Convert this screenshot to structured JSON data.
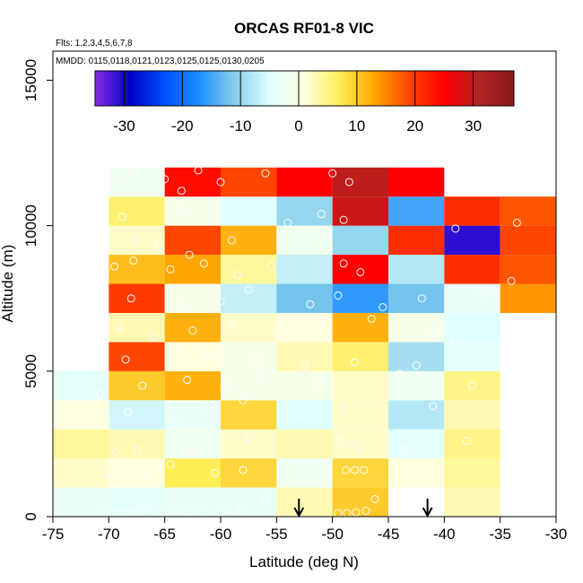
{
  "chart_data": {
    "type": "heatmap",
    "title": "ORCAS RF01-8 VIC",
    "flights_label": "Flts: 1,2,3,4,5,6,7,8",
    "mmdd_label": "MMDD: 0115,0118,0121,0123,0125,0125,0130,0205",
    "xlabel": "Latitude (deg N)",
    "ylabel": "Altitude (m)",
    "xlim": [
      -75,
      -30
    ],
    "ylim": [
      0,
      16000
    ],
    "x_ticks": [
      -75,
      -70,
      -65,
      -60,
      -55,
      -50,
      -45,
      -40,
      -35,
      -30
    ],
    "y_ticks": [
      0,
      5000,
      10000,
      15000
    ],
    "x_tick_labels": [
      "-75",
      "-70",
      "-65",
      "-60",
      "-55",
      "-50",
      "-45",
      "-40",
      "-35",
      "-30"
    ],
    "y_tick_labels": [
      "0",
      "5000",
      "10000",
      "15000"
    ],
    "colorbar": {
      "range": [
        -35,
        37
      ],
      "ticks": [
        -30,
        -20,
        -10,
        0,
        10,
        20,
        30
      ],
      "tick_labels": [
        "-30",
        "-20",
        "-10",
        "0",
        "10",
        "20",
        "30"
      ],
      "colors": [
        "#8a2be2",
        "#0000c8",
        "#0050ff",
        "#1e90ff",
        "#87ceeb",
        "#e0ffff",
        "#ffffe0",
        "#ffee58",
        "#ffa500",
        "#ff4500",
        "#ff0000",
        "#b22222",
        "#8b1a1a"
      ]
    },
    "lat_bins": [
      -75,
      -70,
      -65,
      -60,
      -55,
      -50,
      -45,
      -40,
      -35,
      -30
    ],
    "alt_bin_size": 1000,
    "cells": [
      {
        "lat": -75,
        "alt": 0,
        "value": -3
      },
      {
        "lat": -75,
        "alt": 1000,
        "value": 2
      },
      {
        "lat": -75,
        "alt": 2000,
        "value": 4
      },
      {
        "lat": -75,
        "alt": 3000,
        "value": 1
      },
      {
        "lat": -75,
        "alt": 4000,
        "value": -4
      },
      {
        "lat": -70,
        "alt": 0,
        "value": -4
      },
      {
        "lat": -70,
        "alt": 1000,
        "value": 1
      },
      {
        "lat": -70,
        "alt": 2000,
        "value": 3
      },
      {
        "lat": -70,
        "alt": 3000,
        "value": -6
      },
      {
        "lat": -70,
        "alt": 4000,
        "value": 10
      },
      {
        "lat": -70,
        "alt": 5000,
        "value": 19
      },
      {
        "lat": -70,
        "alt": 6000,
        "value": 3
      },
      {
        "lat": -70,
        "alt": 7000,
        "value": 20
      },
      {
        "lat": -70,
        "alt": 8000,
        "value": 11
      },
      {
        "lat": -70,
        "alt": 9000,
        "value": 2
      },
      {
        "lat": -70,
        "alt": 10000,
        "value": 6
      },
      {
        "lat": -70,
        "alt": 11000,
        "value": -2
      },
      {
        "lat": -65,
        "alt": 0,
        "value": -3
      },
      {
        "lat": -65,
        "alt": 1000,
        "value": 7
      },
      {
        "lat": -65,
        "alt": 2000,
        "value": -2
      },
      {
        "lat": -65,
        "alt": 3000,
        "value": -3
      },
      {
        "lat": -65,
        "alt": 4000,
        "value": 12
      },
      {
        "lat": -65,
        "alt": 5000,
        "value": 1
      },
      {
        "lat": -65,
        "alt": 6000,
        "value": 12
      },
      {
        "lat": -65,
        "alt": 7000,
        "value": -1
      },
      {
        "lat": -65,
        "alt": 8000,
        "value": 13
      },
      {
        "lat": -65,
        "alt": 9000,
        "value": 19
      },
      {
        "lat": -65,
        "alt": 10000,
        "value": -1
      },
      {
        "lat": -65,
        "alt": 11000,
        "value": 24
      },
      {
        "lat": -60,
        "alt": 0,
        "value": -3
      },
      {
        "lat": -60,
        "alt": 1000,
        "value": 9
      },
      {
        "lat": -60,
        "alt": 2000,
        "value": 2
      },
      {
        "lat": -60,
        "alt": 3000,
        "value": 9
      },
      {
        "lat": -60,
        "alt": 4000,
        "value": -1
      },
      {
        "lat": -60,
        "alt": 5000,
        "value": -1
      },
      {
        "lat": -60,
        "alt": 6000,
        "value": 2
      },
      {
        "lat": -60,
        "alt": 7000,
        "value": -7
      },
      {
        "lat": -60,
        "alt": 8000,
        "value": 4
      },
      {
        "lat": -60,
        "alt": 9000,
        "value": 12
      },
      {
        "lat": -60,
        "alt": 10000,
        "value": -5
      },
      {
        "lat": -60,
        "alt": 11000,
        "value": 19
      },
      {
        "lat": -55,
        "alt": 0,
        "value": 3
      },
      {
        "lat": -55,
        "alt": 1000,
        "value": -2
      },
      {
        "lat": -55,
        "alt": 2000,
        "value": 3
      },
      {
        "lat": -55,
        "alt": 3000,
        "value": -5
      },
      {
        "lat": -55,
        "alt": 4000,
        "value": -1
      },
      {
        "lat": -55,
        "alt": 5000,
        "value": 3
      },
      {
        "lat": -55,
        "alt": 6000,
        "value": 1
      },
      {
        "lat": -55,
        "alt": 7000,
        "value": -12
      },
      {
        "lat": -55,
        "alt": 8000,
        "value": -7
      },
      {
        "lat": -55,
        "alt": 9000,
        "value": -2
      },
      {
        "lat": -55,
        "alt": 10000,
        "value": -10
      },
      {
        "lat": -55,
        "alt": 11000,
        "value": 25
      },
      {
        "lat": -50,
        "alt": 0,
        "value": 10
      },
      {
        "lat": -50,
        "alt": 1000,
        "value": 9
      },
      {
        "lat": -50,
        "alt": 2000,
        "value": 2
      },
      {
        "lat": -50,
        "alt": 3000,
        "value": 2
      },
      {
        "lat": -50,
        "alt": 4000,
        "value": 2
      },
      {
        "lat": -50,
        "alt": 5000,
        "value": 6
      },
      {
        "lat": -50,
        "alt": 6000,
        "value": 12
      },
      {
        "lat": -50,
        "alt": 7000,
        "value": -16
      },
      {
        "lat": -50,
        "alt": 8000,
        "value": 25
      },
      {
        "lat": -50,
        "alt": 9000,
        "value": -10
      },
      {
        "lat": -50,
        "alt": 10000,
        "value": 29
      },
      {
        "lat": -50,
        "alt": 11000,
        "value": 30
      },
      {
        "lat": -45,
        "alt": 1000,
        "value": 1
      },
      {
        "lat": -45,
        "alt": 2000,
        "value": -4
      },
      {
        "lat": -45,
        "alt": 3000,
        "value": -8
      },
      {
        "lat": -45,
        "alt": 4000,
        "value": -2
      },
      {
        "lat": -45,
        "alt": 5000,
        "value": -9
      },
      {
        "lat": -45,
        "alt": 6000,
        "value": -1
      },
      {
        "lat": -45,
        "alt": 7000,
        "value": -12
      },
      {
        "lat": -45,
        "alt": 8000,
        "value": -8
      },
      {
        "lat": -45,
        "alt": 9000,
        "value": 21
      },
      {
        "lat": -45,
        "alt": 10000,
        "value": -15
      },
      {
        "lat": -45,
        "alt": 11000,
        "value": 25
      },
      {
        "lat": -40,
        "alt": 0,
        "value": 3
      },
      {
        "lat": -40,
        "alt": 1000,
        "value": 4
      },
      {
        "lat": -40,
        "alt": 2000,
        "value": 5
      },
      {
        "lat": -40,
        "alt": 3000,
        "value": 3
      },
      {
        "lat": -40,
        "alt": 4000,
        "value": 5
      },
      {
        "lat": -40,
        "alt": 5000,
        "value": -4
      },
      {
        "lat": -40,
        "alt": 6000,
        "value": -5
      },
      {
        "lat": -40,
        "alt": 7000,
        "value": -3
      },
      {
        "lat": -40,
        "alt": 8000,
        "value": 21
      },
      {
        "lat": -40,
        "alt": 9000,
        "value": -31
      },
      {
        "lat": -40,
        "alt": 10000,
        "value": 21
      },
      {
        "lat": -35,
        "alt": 7000,
        "value": 14
      },
      {
        "lat": -35,
        "alt": 8000,
        "value": 18
      },
      {
        "lat": -35,
        "alt": 9000,
        "value": 19
      },
      {
        "lat": -35,
        "alt": 10000,
        "value": 18
      }
    ],
    "observations": [
      {
        "lat": -70.6,
        "alt": 100
      },
      {
        "lat": -69.8,
        "alt": 120
      },
      {
        "lat": -69.0,
        "alt": 150
      },
      {
        "lat": -68.2,
        "alt": 100
      },
      {
        "lat": -67.4,
        "alt": 180
      },
      {
        "lat": -66.6,
        "alt": 250
      },
      {
        "lat": -65.5,
        "alt": 120
      },
      {
        "lat": -64.0,
        "alt": 200
      },
      {
        "lat": -63.0,
        "alt": 160
      },
      {
        "lat": -61.7,
        "alt": 120
      },
      {
        "lat": -59.5,
        "alt": 250
      },
      {
        "lat": -58.2,
        "alt": 300
      },
      {
        "lat": -56.0,
        "alt": 600
      },
      {
        "lat": -49.5,
        "alt": 120
      },
      {
        "lat": -48.7,
        "alt": 120
      },
      {
        "lat": -47.9,
        "alt": 150
      },
      {
        "lat": -47.0,
        "alt": 200
      },
      {
        "lat": -46.2,
        "alt": 600
      },
      {
        "lat": -70.2,
        "alt": 1500
      },
      {
        "lat": -68.6,
        "alt": 1600
      },
      {
        "lat": -66.8,
        "alt": 1500
      },
      {
        "lat": -64.5,
        "alt": 1800
      },
      {
        "lat": -60.5,
        "alt": 1500
      },
      {
        "lat": -58.0,
        "alt": 1600
      },
      {
        "lat": -48.8,
        "alt": 1600
      },
      {
        "lat": -48.0,
        "alt": 1600
      },
      {
        "lat": -47.2,
        "alt": 1600
      },
      {
        "lat": -69.3,
        "alt": 2200
      },
      {
        "lat": -67.5,
        "alt": 2300
      },
      {
        "lat": -62.5,
        "alt": 2300
      },
      {
        "lat": -60.0,
        "alt": 2800
      },
      {
        "lat": -57.5,
        "alt": 2700
      },
      {
        "lat": -49.3,
        "alt": 2600
      },
      {
        "lat": -47.6,
        "alt": 2400
      },
      {
        "lat": -43.5,
        "alt": 2300
      },
      {
        "lat": -38.0,
        "alt": 2600
      },
      {
        "lat": -70.3,
        "alt": 3400
      },
      {
        "lat": -68.3,
        "alt": 3600
      },
      {
        "lat": -64.3,
        "alt": 3300
      },
      {
        "lat": -61.5,
        "alt": 3700
      },
      {
        "lat": -58.0,
        "alt": 4000
      },
      {
        "lat": -53.0,
        "alt": 3500
      },
      {
        "lat": -49.0,
        "alt": 3700
      },
      {
        "lat": -41.0,
        "alt": 3800
      },
      {
        "lat": -70.8,
        "alt": 4200
      },
      {
        "lat": -67.0,
        "alt": 4500
      },
      {
        "lat": -63.0,
        "alt": 4700
      },
      {
        "lat": -59.5,
        "alt": 4500
      },
      {
        "lat": -56.5,
        "alt": 4800
      },
      {
        "lat": -51.0,
        "alt": 4600
      },
      {
        "lat": -44.0,
        "alt": 4900
      },
      {
        "lat": -37.5,
        "alt": 4500
      },
      {
        "lat": -68.5,
        "alt": 5400
      },
      {
        "lat": -64.0,
        "alt": 5700
      },
      {
        "lat": -61.0,
        "alt": 5500
      },
      {
        "lat": -57.0,
        "alt": 5400
      },
      {
        "lat": -52.5,
        "alt": 5200
      },
      {
        "lat": -48.0,
        "alt": 5300
      },
      {
        "lat": -42.5,
        "alt": 5200
      },
      {
        "lat": -69.0,
        "alt": 6500
      },
      {
        "lat": -66.0,
        "alt": 6200
      },
      {
        "lat": -62.5,
        "alt": 6400
      },
      {
        "lat": -59.0,
        "alt": 6600
      },
      {
        "lat": -55.0,
        "alt": 6400
      },
      {
        "lat": -50.5,
        "alt": 6700
      },
      {
        "lat": -46.5,
        "alt": 6800
      },
      {
        "lat": -41.0,
        "alt": 6300
      },
      {
        "lat": -39.0,
        "alt": 6000
      },
      {
        "lat": -68.0,
        "alt": 7500
      },
      {
        "lat": -63.5,
        "alt": 7200
      },
      {
        "lat": -60.0,
        "alt": 7400
      },
      {
        "lat": -57.5,
        "alt": 7800
      },
      {
        "lat": -52.0,
        "alt": 7300
      },
      {
        "lat": -49.5,
        "alt": 7600
      },
      {
        "lat": -45.5,
        "alt": 7200
      },
      {
        "lat": -42.0,
        "alt": 7500
      },
      {
        "lat": -36.5,
        "alt": 7700
      },
      {
        "lat": -35.5,
        "alt": 7800
      },
      {
        "lat": -69.5,
        "alt": 8600
      },
      {
        "lat": -67.8,
        "alt": 8800
      },
      {
        "lat": -64.5,
        "alt": 8500
      },
      {
        "lat": -61.5,
        "alt": 8700
      },
      {
        "lat": -58.5,
        "alt": 8300
      },
      {
        "lat": -55.5,
        "alt": 8600
      },
      {
        "lat": -49.0,
        "alt": 8700
      },
      {
        "lat": -47.5,
        "alt": 8400
      },
      {
        "lat": -34.0,
        "alt": 8100
      },
      {
        "lat": -67.5,
        "alt": 9500
      },
      {
        "lat": -65.5,
        "alt": 9300
      },
      {
        "lat": -62.8,
        "alt": 9000
      },
      {
        "lat": -59.0,
        "alt": 9500
      },
      {
        "lat": -50.5,
        "alt": 9600
      },
      {
        "lat": -39.0,
        "alt": 9900
      },
      {
        "lat": -68.8,
        "alt": 10300
      },
      {
        "lat": -63.5,
        "alt": 10500
      },
      {
        "lat": -57.0,
        "alt": 10600
      },
      {
        "lat": -54.0,
        "alt": 10100
      },
      {
        "lat": -51.0,
        "alt": 10400
      },
      {
        "lat": -49.0,
        "alt": 10200
      },
      {
        "lat": -33.5,
        "alt": 10100
      },
      {
        "lat": -69.0,
        "alt": 11500
      },
      {
        "lat": -65.0,
        "alt": 11600
      },
      {
        "lat": -63.5,
        "alt": 11200
      },
      {
        "lat": -60.0,
        "alt": 11500
      },
      {
        "lat": -56.0,
        "alt": 11800
      },
      {
        "lat": -50.0,
        "alt": 11800
      },
      {
        "lat": -48.5,
        "alt": 11500
      },
      {
        "lat": -68.0,
        "alt": 11900
      },
      {
        "lat": -62.0,
        "alt": 11900
      }
    ],
    "arrows": [
      {
        "lat": -53,
        "label": "arrow-1"
      },
      {
        "lat": -41.5,
        "label": "arrow-2"
      }
    ]
  }
}
